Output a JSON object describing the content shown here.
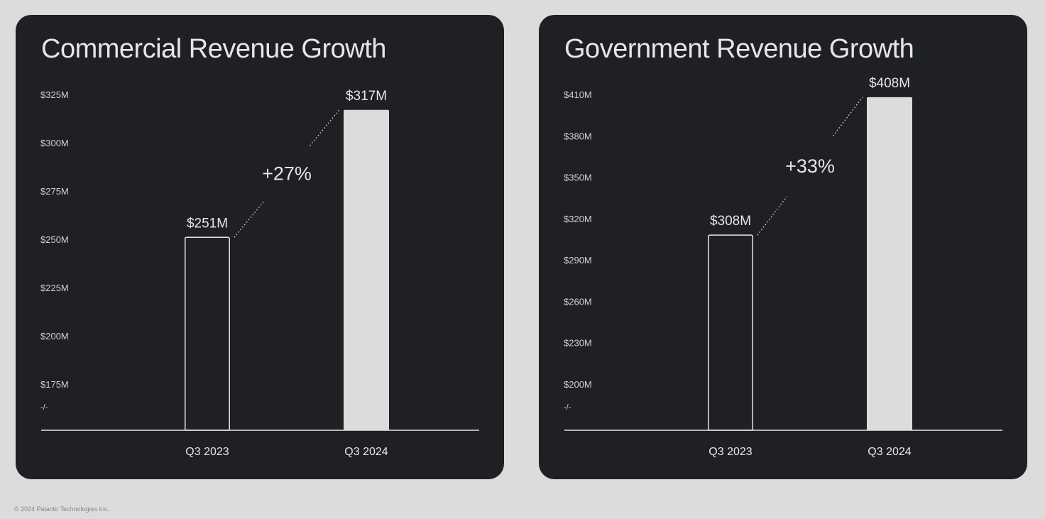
{
  "chart_data": [
    {
      "type": "bar",
      "title": "Commercial Revenue Growth",
      "categories": [
        "Q3 2023",
        "Q3 2024"
      ],
      "values": [
        251,
        317
      ],
      "value_labels": [
        "$251M",
        "$317M"
      ],
      "ylim": [
        175,
        325
      ],
      "y_ticks": [
        175,
        200,
        225,
        250,
        275,
        300,
        325
      ],
      "y_tick_labels": [
        "$175M",
        "$200M",
        "$225M",
        "$250M",
        "$275M",
        "$300M",
        "$325M"
      ],
      "axis_break_label": "-/-",
      "growth_label": "+27%",
      "xlabel": "",
      "ylabel": "",
      "grid": false,
      "bar_styles": [
        "outline",
        "filled"
      ]
    },
    {
      "type": "bar",
      "title": "Government Revenue Growth",
      "categories": [
        "Q3 2023",
        "Q3 2024"
      ],
      "values": [
        308,
        408
      ],
      "value_labels": [
        "$308M",
        "$408M"
      ],
      "ylim": [
        200,
        410
      ],
      "y_ticks": [
        200,
        230,
        260,
        290,
        320,
        350,
        380,
        410
      ],
      "y_tick_labels": [
        "$200M",
        "$230M",
        "$260M",
        "$290M",
        "$320M",
        "$350M",
        "$380M",
        "$410M"
      ],
      "axis_break_label": "-/-",
      "growth_label": "+33%",
      "xlabel": "",
      "ylabel": "",
      "grid": false,
      "bar_styles": [
        "outline",
        "filled"
      ]
    }
  ],
  "footer": "© 2024 Palantir Technologies Inc.",
  "colors": {
    "page_background": "#dcdcdc",
    "panel_background": "#1e2023",
    "text": "#e6e6e6",
    "bar_fill": "#dcdcdc",
    "axis_text": "#d0d0d0"
  }
}
